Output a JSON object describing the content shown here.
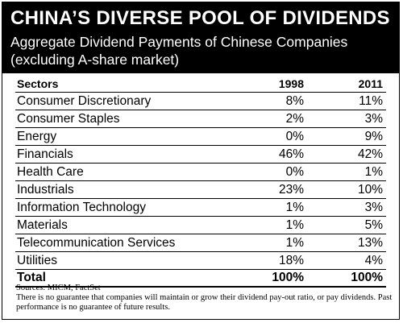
{
  "header": {
    "title": "CHINA’S DIVERSE POOL OF DIVIDENDS",
    "subtitle": "Aggregate Dividend Payments of Chinese Companies (excluding A-share market)"
  },
  "chart_data": {
    "type": "table",
    "title": "CHINA’S DIVERSE POOL OF DIVIDENDS",
    "subtitle": "Aggregate Dividend Payments of Chinese Companies (excluding A-share market)",
    "columns": [
      "Sectors",
      "1998",
      "2011"
    ],
    "rows": [
      [
        "Consumer Discretionary",
        "8%",
        "11%"
      ],
      [
        "Consumer Staples",
        "2%",
        "3%"
      ],
      [
        "Energy",
        "0%",
        "9%"
      ],
      [
        "Financials",
        "46%",
        "42%"
      ],
      [
        "Health Care",
        "0%",
        "1%"
      ],
      [
        "Industrials",
        "23%",
        "10%"
      ],
      [
        "Information Technology",
        "1%",
        "3%"
      ],
      [
        "Materials",
        "1%",
        "5%"
      ],
      [
        "Telecommunication Services",
        "1%",
        "13%"
      ],
      [
        "Utilities",
        "18%",
        "4%"
      ]
    ],
    "total": [
      "Total",
      "100%",
      "100%"
    ]
  },
  "footer": {
    "sources": "Sources: MICM, FactSet",
    "disclaimer": "There is no guarantee that companies will maintain or grow their dividend pay-out ratio, or pay dividends. Past performance is no guarantee of future results."
  }
}
